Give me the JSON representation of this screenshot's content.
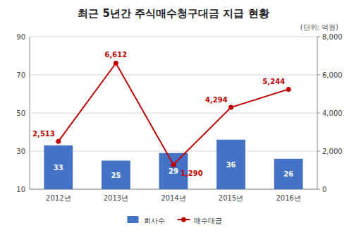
{
  "chart_data": {
    "type": "bar",
    "title": "최근 5년간 주식매수청구대금 지급 현황",
    "annotations": [
      "(단위: 억원)"
    ],
    "categories": [
      "2012년",
      "2013년",
      "2014년",
      "2015년",
      "2016년"
    ],
    "series": [
      {
        "name": "회사수",
        "type": "bar",
        "color": "#4472C4",
        "values": [
          33,
          25,
          29,
          36,
          26
        ]
      },
      {
        "name": "매수대금",
        "type": "line",
        "axis": "y2",
        "color": "#C00000",
        "marker": "circle",
        "values": [
          2513,
          6612,
          1290,
          4294,
          5244
        ],
        "value_labels": [
          "2,513",
          "6,612",
          "1,290",
          "4,294",
          "5,244"
        ]
      }
    ],
    "ylim": [
      10,
      90
    ],
    "yticks": [
      10,
      30,
      50,
      70,
      90
    ],
    "y2lim": [
      0,
      8000
    ],
    "y2ticks": [
      0,
      {
        "value": 2000,
        "label": "2,000"
      },
      {
        "value": 4000,
        "label": "4,000"
      },
      {
        "value": 6000,
        "label": "6,000"
      },
      {
        "value": 8000,
        "label": "8,000"
      }
    ],
    "grid": true,
    "data_labels": true,
    "legend": "bottom"
  }
}
